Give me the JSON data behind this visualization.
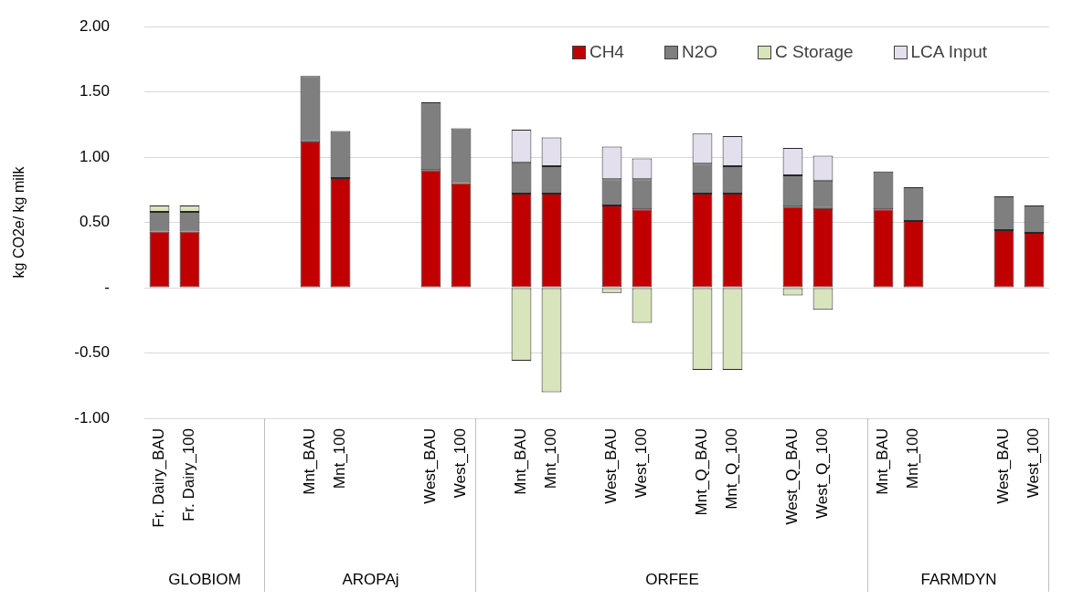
{
  "chart_data": [
    {
      "type": "bar",
      "stacked": true,
      "xlabel": "GLOBIOM",
      "ylabel": "kg CO2e/ kg milk",
      "grid": "y",
      "ylim": [
        -1,
        2
      ],
      "yticks": [
        {
          "value": 2,
          "label": "2.00"
        },
        {
          "value": 1.5,
          "label": "1.50"
        },
        {
          "value": 1,
          "label": "1.00"
        },
        {
          "value": 0.5,
          "label": "0.50"
        },
        {
          "value": 0,
          "label": "-"
        },
        {
          "value": -0.5,
          "label": "-0.50"
        },
        {
          "value": -1,
          "label": "-1.00"
        }
      ],
      "categories": [
        "Fr. Dairy_BAU",
        "Fr. Dairy_100",
        null,
        null
      ],
      "series": [
        {
          "color": "#c00000",
          "values": [
            0.43,
            0.43,
            null,
            null
          ]
        },
        {
          "color": "#7f7f7f",
          "values": [
            0.15,
            0.15,
            null,
            null
          ]
        },
        {
          "color": "#d8e4bc",
          "values": [
            0.05,
            0.05,
            null,
            null
          ]
        }
      ]
    },
    {
      "type": "bar",
      "stacked": true,
      "xlabel": "AROPAj",
      "grid": "y",
      "tick_labels": "x",
      "ylim": [
        -1,
        2
      ],
      "yticks": [
        2,
        1.5,
        1,
        0.5,
        0,
        -0.5,
        -1
      ],
      "categories": [
        null,
        "Mnt_BAU",
        "Mnt_100",
        null,
        null,
        "West_BAU",
        "West_100"
      ],
      "series": [
        {
          "color": "#c00000",
          "values": [
            null,
            1.12,
            0.84,
            null,
            null,
            0.9,
            0.8
          ]
        },
        {
          "color": "#7f7f7f",
          "values": [
            null,
            0.5,
            0.36,
            null,
            null,
            0.52,
            0.42
          ]
        }
      ]
    },
    {
      "type": "bar",
      "stacked": true,
      "xlabel": "ORFEE",
      "grid": "y",
      "tick_labels": "x",
      "legend": "top right",
      "ylim": [
        -1,
        2
      ],
      "yticks": [
        2,
        1.5,
        1,
        0.5,
        0,
        -0.5,
        -1
      ],
      "categories": [
        null,
        "Mnt_BAU",
        "Mnt_100",
        null,
        "West_BAU",
        "West_100",
        null,
        "Mnt_Q_BAU",
        "Mnt_Q_100",
        null,
        "West_Q_BAU",
        "West_Q_100",
        null
      ],
      "series": [
        {
          "name": "CH4",
          "color": "#c00000",
          "values": [
            null,
            0.72,
            0.72,
            null,
            0.63,
            0.6,
            null,
            0.72,
            0.72,
            null,
            0.62,
            0.61,
            null
          ]
        },
        {
          "name": "N2O",
          "color": "#7f7f7f",
          "values": [
            null,
            0.24,
            0.21,
            null,
            0.2,
            0.23,
            null,
            0.23,
            0.21,
            null,
            0.24,
            0.21,
            null
          ]
        },
        {
          "name": "C Storage",
          "color": "#d8e4bc",
          "values": [
            null,
            -0.56,
            -0.8,
            null,
            -0.04,
            -0.27,
            null,
            -0.63,
            -0.63,
            null,
            -0.06,
            -0.17,
            null
          ]
        },
        {
          "name": "LCA Input",
          "color": "#e4dfec",
          "values": [
            null,
            0.25,
            0.22,
            null,
            0.25,
            0.16,
            null,
            0.23,
            0.23,
            null,
            0.21,
            0.19,
            null
          ]
        }
      ]
    },
    {
      "type": "bar",
      "stacked": true,
      "xlabel": "FARMDYN",
      "grid": "y",
      "tick_labels": "x",
      "ylim": [
        -1,
        2
      ],
      "yticks": [
        2,
        1.5,
        1,
        0.5,
        0,
        -0.5,
        -1
      ],
      "categories": [
        "Mnt_BAU",
        "Mnt_100",
        null,
        null,
        "West_BAU",
        "West_100"
      ],
      "series": [
        {
          "color": "#c00000",
          "values": [
            0.6,
            0.51,
            null,
            null,
            0.44,
            0.42
          ]
        },
        {
          "color": "#7f7f7f",
          "values": [
            0.29,
            0.26,
            null,
            null,
            0.26,
            0.21
          ]
        }
      ]
    }
  ]
}
